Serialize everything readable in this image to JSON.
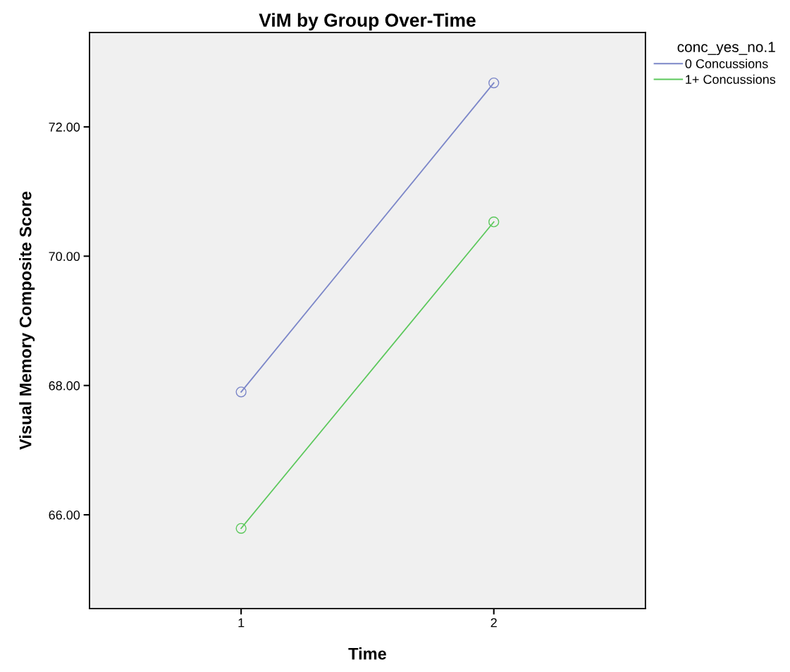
{
  "chart_data": {
    "type": "line",
    "title": "ViM by Group Over-Time",
    "xlabel": "Time",
    "ylabel": "Visual Memory Composite Score",
    "legend_title": "conc_yes_no.1",
    "x": [
      1,
      2
    ],
    "series": [
      {
        "name": "0 Concussions",
        "color": "#7b86c8",
        "values": [
          67.9,
          72.68
        ]
      },
      {
        "name": "1+ Concussions",
        "color": "#5cc85c",
        "values": [
          65.79,
          70.53
        ]
      }
    ],
    "xlim": [
      0.4,
      2.6
    ],
    "xticks": [
      1,
      2
    ],
    "ylim": [
      64.55,
      73.46
    ],
    "yticks": [
      {
        "value": 66,
        "label": "66.00"
      },
      {
        "value": 68,
        "label": "68.00"
      },
      {
        "value": 70,
        "label": "70.00"
      },
      {
        "value": 72,
        "label": "72.00"
      }
    ],
    "marker": "circle",
    "line_style": "solid",
    "grid": false,
    "legend": "top right"
  }
}
